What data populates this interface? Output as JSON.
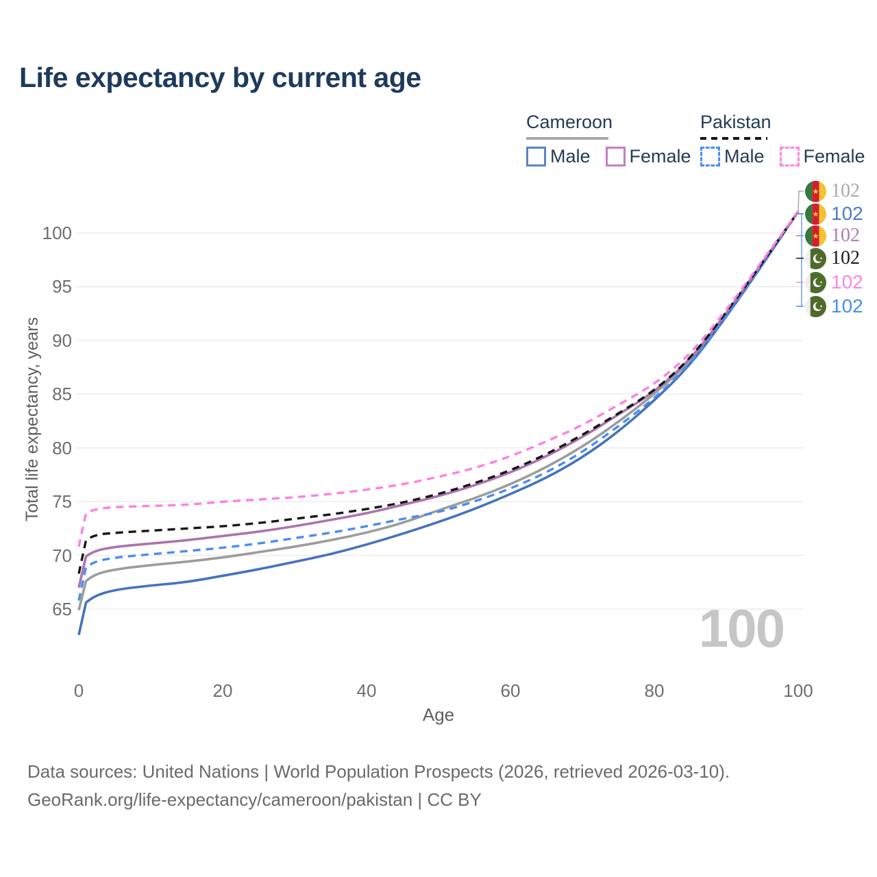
{
  "title": "Life expectancy by current age",
  "legend": {
    "cameroon": {
      "title": "Cameroon",
      "male": "Male",
      "female": "Female"
    },
    "pakistan": {
      "title": "Pakistan",
      "male": "Male",
      "female": "Female"
    }
  },
  "age_counter": "100",
  "footer": {
    "line1": "Data sources: United Nations | World Population Prospects (2026, retrieved 2026-03-10).",
    "line2": "GeoRank.org/life-expectancy/cameroon/pakistan | CC BY"
  },
  "colors": {
    "title_text": "#1e3a5c",
    "cameroon_male": "#4573bd",
    "cameroon_female": "#ab74ad",
    "cameroon_all": "#9c9c9c",
    "pakistan_male": "#4a8cf0",
    "pakistan_female": "#ff80e1",
    "pakistan_all": "#161616",
    "gridline": "#e9e9e9"
  },
  "chart_data": {
    "type": "line",
    "title": "Life expectancy by current age",
    "xlabel": "Age",
    "ylabel": "Total life expectancy, years",
    "xlim": [
      0,
      100
    ],
    "ylim": [
      62,
      102.5
    ],
    "x_ticks": [
      0,
      20,
      40,
      60,
      80,
      100
    ],
    "y_ticks": [
      65,
      70,
      75,
      80,
      85,
      90,
      95,
      100
    ],
    "grid": "horizontal",
    "legend_position": "top-right",
    "ages": [
      0,
      1,
      2,
      5,
      10,
      15,
      20,
      25,
      30,
      35,
      40,
      45,
      50,
      55,
      60,
      65,
      70,
      75,
      80,
      85,
      90,
      95,
      100
    ],
    "series": [
      {
        "name": "Cameroon All",
        "country": "Cameroon",
        "sex": "Both",
        "style": "solid",
        "color": "#9c9c9c",
        "values": [
          64.9,
          67.6,
          68.2,
          68.7,
          69.1,
          69.4,
          69.8,
          70.3,
          70.8,
          71.4,
          72.1,
          73.0,
          74.2,
          75.3,
          76.6,
          78.2,
          80.1,
          82.4,
          85.0,
          88.0,
          92.4,
          97.1,
          102
        ]
      },
      {
        "name": "Cameroon Male",
        "country": "Cameroon",
        "sex": "Male",
        "style": "solid",
        "color": "#4573bd",
        "values": [
          62.6,
          65.6,
          66.2,
          66.8,
          67.2,
          67.5,
          68.1,
          68.7,
          69.4,
          70.1,
          71.0,
          72.0,
          73.1,
          74.3,
          75.7,
          77.2,
          79.1,
          81.5,
          84.4,
          87.7,
          92.2,
          97.0,
          102
        ]
      },
      {
        "name": "Cameroon Female",
        "country": "Cameroon",
        "sex": "Female",
        "style": "solid",
        "color": "#ab74ad",
        "values": [
          67.0,
          69.9,
          70.4,
          70.8,
          71.1,
          71.4,
          71.8,
          72.2,
          72.7,
          73.3,
          73.9,
          74.7,
          75.5,
          76.5,
          77.7,
          79.2,
          81.0,
          83.1,
          85.2,
          88.2,
          92.5,
          97.2,
          102
        ]
      },
      {
        "name": "Pakistan Male",
        "country": "Pakistan",
        "sex": "Male",
        "style": "dashed",
        "color": "#4a8cf0",
        "values": [
          65.8,
          68.9,
          69.4,
          69.8,
          70.1,
          70.4,
          70.7,
          71.1,
          71.6,
          72.1,
          72.7,
          73.4,
          74.0,
          75.0,
          76.2,
          77.7,
          79.6,
          82.0,
          84.6,
          87.8,
          92.3,
          97.0,
          102
        ]
      },
      {
        "name": "Pakistan All",
        "country": "Pakistan",
        "sex": "Both",
        "style": "dashed",
        "color": "#161616",
        "values": [
          68.3,
          71.4,
          71.9,
          72.1,
          72.3,
          72.5,
          72.7,
          73.0,
          73.4,
          73.8,
          74.3,
          74.9,
          75.7,
          76.7,
          77.9,
          79.4,
          81.2,
          83.2,
          85.3,
          88.3,
          92.6,
          97.2,
          102
        ]
      },
      {
        "name": "Pakistan Female",
        "country": "Pakistan",
        "sex": "Female",
        "style": "dashed",
        "color": "#ff80e1",
        "values": [
          70.8,
          73.9,
          74.3,
          74.5,
          74.6,
          74.7,
          75.0,
          75.2,
          75.4,
          75.7,
          76.1,
          76.6,
          77.3,
          78.1,
          79.2,
          80.6,
          82.1,
          84.0,
          85.9,
          88.7,
          92.8,
          97.4,
          102
        ]
      }
    ],
    "end_labels": [
      {
        "flag": "cameroon",
        "text": "102",
        "color": "#a9a9a9"
      },
      {
        "flag": "cameroon",
        "text": "102",
        "color": "#4a7dc9"
      },
      {
        "flag": "cameroon",
        "text": "102",
        "color": "#b07ab3"
      },
      {
        "flag": "pakistan",
        "text": "102",
        "color": "#1a1a1a"
      },
      {
        "flag": "pakistan",
        "text": "102",
        "color": "#ff85e0"
      },
      {
        "flag": "pakistan",
        "text": "102",
        "color": "#4a8df2"
      }
    ]
  }
}
